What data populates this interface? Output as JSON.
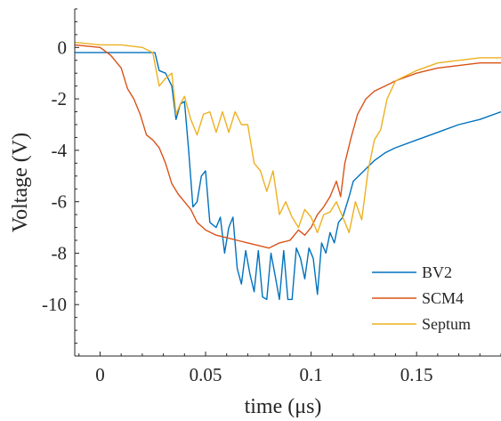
{
  "chart_data": {
    "type": "line",
    "xlabel": "time (μs)",
    "ylabel": "Voltage (V)",
    "xlim": [
      -0.012,
      0.19
    ],
    "ylim": [
      -12,
      1.5
    ],
    "xticks": [
      0,
      0.05,
      0.1,
      0.15
    ],
    "xtick_labels": [
      "0",
      "0.05",
      "0.1",
      "0.15"
    ],
    "yticks": [
      0,
      -2,
      -4,
      -6,
      -8,
      -10
    ],
    "ytick_labels": [
      "0",
      "-2",
      "-4",
      "-6",
      "-8",
      "-10"
    ],
    "grid": false,
    "legend_position": "bottom-right",
    "series": [
      {
        "name": "BV2",
        "color": "#0072BD",
        "x": [
          -0.012,
          0.0,
          0.02,
          0.026,
          0.028,
          0.031,
          0.034,
          0.036,
          0.038,
          0.04,
          0.042,
          0.044,
          0.046,
          0.048,
          0.05,
          0.052,
          0.055,
          0.057,
          0.059,
          0.061,
          0.063,
          0.065,
          0.067,
          0.069,
          0.071,
          0.073,
          0.075,
          0.077,
          0.079,
          0.081,
          0.083,
          0.085,
          0.087,
          0.089,
          0.091,
          0.093,
          0.095,
          0.097,
          0.099,
          0.101,
          0.103,
          0.105,
          0.107,
          0.109,
          0.111,
          0.113,
          0.115,
          0.118,
          0.12,
          0.125,
          0.13,
          0.135,
          0.14,
          0.15,
          0.16,
          0.17,
          0.18,
          0.19
        ],
        "y": [
          -0.2,
          -0.2,
          -0.2,
          -0.2,
          -0.9,
          -1.0,
          -1.5,
          -2.8,
          -2.2,
          -2.1,
          -4.0,
          -6.2,
          -6.0,
          -5.0,
          -4.8,
          -6.8,
          -7.0,
          -6.6,
          -8.0,
          -7.0,
          -6.6,
          -8.6,
          -9.2,
          -7.9,
          -8.8,
          -9.5,
          -7.9,
          -9.7,
          -9.8,
          -8.0,
          -8.9,
          -9.8,
          -7.9,
          -9.8,
          -9.8,
          -7.8,
          -8.2,
          -9.0,
          -7.8,
          -8.2,
          -9.6,
          -7.6,
          -8.0,
          -7.2,
          -7.6,
          -6.8,
          -6.6,
          -5.8,
          -5.2,
          -4.8,
          -4.4,
          -4.1,
          -3.9,
          -3.6,
          -3.3,
          -3.0,
          -2.8,
          -2.5
        ]
      },
      {
        "name": "SCM4",
        "color": "#D95319",
        "x": [
          -0.012,
          0.0,
          0.005,
          0.01,
          0.013,
          0.016,
          0.019,
          0.022,
          0.025,
          0.028,
          0.031,
          0.034,
          0.037,
          0.04,
          0.043,
          0.046,
          0.05,
          0.055,
          0.06,
          0.065,
          0.07,
          0.075,
          0.08,
          0.085,
          0.09,
          0.094,
          0.097,
          0.1,
          0.103,
          0.106,
          0.109,
          0.112,
          0.114,
          0.116,
          0.119,
          0.122,
          0.126,
          0.13,
          0.135,
          0.14,
          0.15,
          0.16,
          0.17,
          0.18,
          0.19
        ],
        "y": [
          0.1,
          0.0,
          -0.3,
          -0.8,
          -1.6,
          -2.0,
          -2.6,
          -3.4,
          -3.6,
          -3.9,
          -4.5,
          -5.3,
          -5.7,
          -6.0,
          -6.3,
          -6.8,
          -7.1,
          -7.3,
          -7.4,
          -7.5,
          -7.6,
          -7.7,
          -7.8,
          -7.6,
          -7.5,
          -7.1,
          -7.3,
          -7.0,
          -6.5,
          -6.2,
          -5.8,
          -5.2,
          -5.8,
          -4.5,
          -3.5,
          -2.6,
          -2.0,
          -1.7,
          -1.5,
          -1.3,
          -1.0,
          -0.8,
          -0.7,
          -0.6,
          -0.6
        ]
      },
      {
        "name": "Septum",
        "color": "#EDB120",
        "x": [
          -0.012,
          0.0,
          0.01,
          0.02,
          0.025,
          0.028,
          0.031,
          0.034,
          0.036,
          0.038,
          0.04,
          0.043,
          0.046,
          0.049,
          0.052,
          0.055,
          0.058,
          0.061,
          0.064,
          0.067,
          0.07,
          0.073,
          0.076,
          0.079,
          0.082,
          0.085,
          0.088,
          0.091,
          0.094,
          0.097,
          0.1,
          0.103,
          0.106,
          0.109,
          0.112,
          0.115,
          0.118,
          0.121,
          0.124,
          0.127,
          0.13,
          0.133,
          0.136,
          0.14,
          0.15,
          0.16,
          0.17,
          0.18,
          0.19
        ],
        "y": [
          0.2,
          0.1,
          0.1,
          0.0,
          -0.2,
          -1.5,
          -1.2,
          -1.0,
          -2.6,
          -2.2,
          -1.9,
          -2.8,
          -3.4,
          -2.6,
          -2.5,
          -3.3,
          -2.5,
          -3.3,
          -2.5,
          -3.0,
          -3.0,
          -4.5,
          -4.8,
          -5.6,
          -4.8,
          -6.5,
          -6.0,
          -6.6,
          -7.0,
          -6.3,
          -6.6,
          -7.2,
          -6.5,
          -6.4,
          -6.0,
          -6.6,
          -7.2,
          -6.0,
          -6.7,
          -4.8,
          -3.6,
          -3.2,
          -2.0,
          -1.3,
          -0.9,
          -0.6,
          -0.5,
          -0.4,
          -0.4
        ]
      }
    ]
  }
}
